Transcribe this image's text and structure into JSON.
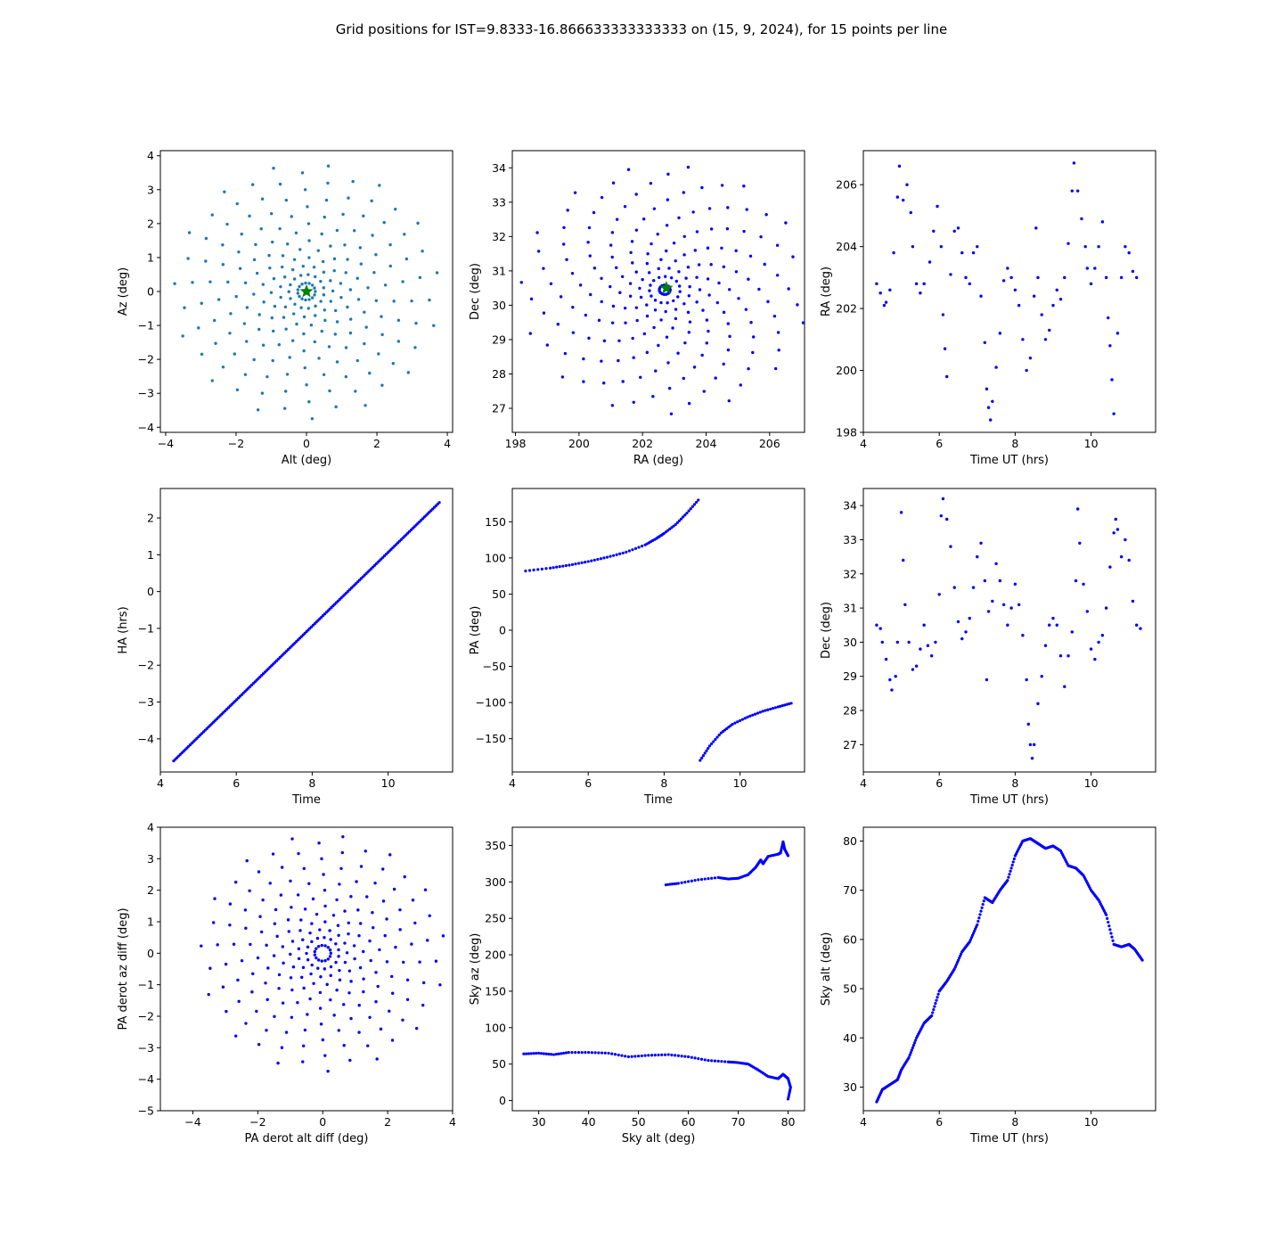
{
  "figure": {
    "title": "Grid positions for IST=9.8333-16.866633333333333 on (15, 9, 2024), for 15 points per line",
    "colors": {
      "points": "#0000ff",
      "grid_points": "#1f77b4",
      "star": "#008000",
      "axes": "#000000"
    }
  },
  "chart_data": [
    {
      "id": "alt-az",
      "type": "scatter",
      "xlabel": "Alt (deg)",
      "ylabel": "Az (deg)",
      "xlim": [
        -4.15,
        4.15
      ],
      "ylim": [
        -4.15,
        4.15
      ],
      "xticks": [
        -4,
        -2,
        0,
        2,
        4
      ],
      "yticks": [
        -4,
        -3,
        -2,
        -1,
        0,
        1,
        2,
        3,
        4
      ],
      "color": "#1f77b4",
      "pattern": "spiral",
      "star": [
        0,
        0
      ],
      "points": []
    },
    {
      "id": "ra-dec",
      "type": "scatter",
      "xlabel": "RA (deg)",
      "ylabel": "Dec (deg)",
      "xlim": [
        197.9,
        207.1
      ],
      "ylim": [
        26.3,
        34.5
      ],
      "xticks": [
        198,
        200,
        202,
        204,
        206
      ],
      "yticks": [
        27,
        28,
        29,
        30,
        31,
        32,
        33,
        34
      ],
      "color": "#0000ff",
      "pattern": "spiral-radec",
      "star": [
        202.75,
        30.5
      ],
      "points": []
    },
    {
      "id": "ra-time",
      "type": "scatter",
      "xlabel": "Time UT (hrs)",
      "ylabel": "RA (deg)",
      "xlim": [
        4.0,
        11.7
      ],
      "ylim": [
        198.0,
        207.1
      ],
      "xticks": [
        4,
        6,
        8,
        10
      ],
      "yticks": [
        198,
        200,
        202,
        204,
        206
      ],
      "color": "#0000ff",
      "points": [
        [
          4.35,
          202.8
        ],
        [
          4.45,
          202.5
        ],
        [
          4.55,
          202.1
        ],
        [
          4.6,
          202.2
        ],
        [
          4.7,
          202.6
        ],
        [
          4.8,
          203.8
        ],
        [
          4.9,
          205.6
        ],
        [
          4.95,
          206.6
        ],
        [
          5.05,
          205.5
        ],
        [
          5.15,
          206.0
        ],
        [
          5.25,
          205.1
        ],
        [
          5.3,
          204.0
        ],
        [
          5.4,
          202.8
        ],
        [
          5.5,
          202.5
        ],
        [
          5.6,
          202.8
        ],
        [
          5.75,
          203.5
        ],
        [
          5.85,
          204.5
        ],
        [
          5.95,
          205.3
        ],
        [
          6.05,
          204.0
        ],
        [
          6.1,
          201.8
        ],
        [
          6.15,
          200.7
        ],
        [
          6.2,
          199.8
        ],
        [
          6.3,
          203.1
        ],
        [
          6.4,
          204.5
        ],
        [
          6.5,
          204.6
        ],
        [
          6.6,
          203.8
        ],
        [
          6.7,
          203.0
        ],
        [
          6.8,
          202.8
        ],
        [
          6.9,
          203.8
        ],
        [
          7.0,
          204.0
        ],
        [
          7.1,
          202.4
        ],
        [
          7.2,
          200.9
        ],
        [
          7.25,
          199.4
        ],
        [
          7.3,
          198.8
        ],
        [
          7.35,
          198.4
        ],
        [
          7.4,
          199.0
        ],
        [
          7.5,
          200.1
        ],
        [
          7.6,
          201.2
        ],
        [
          7.7,
          202.9
        ],
        [
          7.8,
          203.3
        ],
        [
          7.9,
          203.0
        ],
        [
          8.0,
          202.6
        ],
        [
          8.1,
          202.1
        ],
        [
          8.2,
          201.0
        ],
        [
          8.3,
          200.0
        ],
        [
          8.4,
          200.4
        ],
        [
          8.5,
          202.4
        ],
        [
          8.55,
          204.6
        ],
        [
          8.6,
          203.0
        ],
        [
          8.7,
          201.8
        ],
        [
          8.8,
          201.0
        ],
        [
          8.9,
          201.3
        ],
        [
          9.0,
          202.1
        ],
        [
          9.1,
          202.6
        ],
        [
          9.2,
          202.3
        ],
        [
          9.3,
          203.0
        ],
        [
          9.4,
          204.1
        ],
        [
          9.5,
          205.8
        ],
        [
          9.55,
          206.7
        ],
        [
          9.65,
          205.8
        ],
        [
          9.75,
          204.9
        ],
        [
          9.85,
          204.0
        ],
        [
          9.9,
          203.3
        ],
        [
          10.0,
          202.8
        ],
        [
          10.1,
          203.3
        ],
        [
          10.2,
          204.0
        ],
        [
          10.3,
          204.8
        ],
        [
          10.4,
          203.0
        ],
        [
          10.45,
          201.7
        ],
        [
          10.5,
          200.8
        ],
        [
          10.55,
          199.7
        ],
        [
          10.6,
          198.6
        ],
        [
          10.7,
          201.2
        ],
        [
          10.8,
          203.0
        ],
        [
          10.9,
          204.0
        ],
        [
          11.0,
          203.8
        ],
        [
          11.1,
          203.2
        ],
        [
          11.2,
          203.0
        ]
      ]
    },
    {
      "id": "ha-time",
      "type": "line",
      "xlabel": "Time",
      "ylabel": "HA (hrs)",
      "xlim": [
        4.0,
        11.7
      ],
      "ylim": [
        -4.9,
        2.8
      ],
      "xticks": [
        4,
        6,
        8,
        10
      ],
      "yticks": [
        -4,
        -3,
        -2,
        -1,
        0,
        1,
        2
      ],
      "color": "#0000ff",
      "x": [
        4.35,
        11.35
      ],
      "y": [
        -4.6,
        2.42
      ]
    },
    {
      "id": "pa-time",
      "type": "scatter",
      "xlabel": "Time",
      "ylabel": "PA (deg)",
      "xlim": [
        4.0,
        11.7
      ],
      "ylim": [
        -196,
        196
      ],
      "xticks": [
        4,
        6,
        8,
        10
      ],
      "yticks": [
        -150,
        -100,
        -50,
        0,
        50,
        100,
        150
      ],
      "color": "#0000ff",
      "series": [
        {
          "x": [
            4.35,
            5.0,
            5.5,
            6.0,
            6.5,
            7.0,
            7.5,
            7.8,
            8.0,
            8.3,
            8.6,
            8.9
          ],
          "y": [
            82,
            86,
            90,
            95,
            101,
            108,
            118,
            127,
            134,
            146,
            162,
            180
          ]
        },
        {
          "x": [
            8.95,
            9.2,
            9.5,
            9.8,
            10.2,
            10.6,
            11.0,
            11.35
          ],
          "y": [
            -180,
            -160,
            -142,
            -130,
            -120,
            -112,
            -106,
            -101
          ]
        }
      ]
    },
    {
      "id": "dec-time",
      "type": "scatter",
      "xlabel": "Time UT (hrs)",
      "ylabel": "Dec (deg)",
      "xlim": [
        4.0,
        11.7
      ],
      "ylim": [
        26.2,
        34.5
      ],
      "xticks": [
        4,
        6,
        8,
        10
      ],
      "yticks": [
        27,
        28,
        29,
        30,
        31,
        32,
        33,
        34
      ],
      "color": "#0000ff",
      "points": [
        [
          4.35,
          30.5
        ],
        [
          4.45,
          30.4
        ],
        [
          4.5,
          30.0
        ],
        [
          4.6,
          29.5
        ],
        [
          4.7,
          28.9
        ],
        [
          4.75,
          28.6
        ],
        [
          4.85,
          29.0
        ],
        [
          4.9,
          30.0
        ],
        [
          5.0,
          33.8
        ],
        [
          5.05,
          32.4
        ],
        [
          5.1,
          31.1
        ],
        [
          5.2,
          30.0
        ],
        [
          5.3,
          29.2
        ],
        [
          5.4,
          29.3
        ],
        [
          5.5,
          29.8
        ],
        [
          5.6,
          30.5
        ],
        [
          5.7,
          29.9
        ],
        [
          5.8,
          29.6
        ],
        [
          5.9,
          30.0
        ],
        [
          6.0,
          31.4
        ],
        [
          6.05,
          33.7
        ],
        [
          6.1,
          34.2
        ],
        [
          6.2,
          33.6
        ],
        [
          6.3,
          32.8
        ],
        [
          6.4,
          31.6
        ],
        [
          6.5,
          30.6
        ],
        [
          6.6,
          30.1
        ],
        [
          6.7,
          30.3
        ],
        [
          6.8,
          30.7
        ],
        [
          6.9,
          31.6
        ],
        [
          7.0,
          32.5
        ],
        [
          7.1,
          32.9
        ],
        [
          7.2,
          31.8
        ],
        [
          7.25,
          28.9
        ],
        [
          7.3,
          30.9
        ],
        [
          7.4,
          31.2
        ],
        [
          7.5,
          32.3
        ],
        [
          7.6,
          31.8
        ],
        [
          7.7,
          31.1
        ],
        [
          7.8,
          30.5
        ],
        [
          7.9,
          31.0
        ],
        [
          8.0,
          31.7
        ],
        [
          8.1,
          31.1
        ],
        [
          8.2,
          30.2
        ],
        [
          8.3,
          28.9
        ],
        [
          8.35,
          27.6
        ],
        [
          8.4,
          27.0
        ],
        [
          8.45,
          26.6
        ],
        [
          8.5,
          27.0
        ],
        [
          8.6,
          28.2
        ],
        [
          8.7,
          29.0
        ],
        [
          8.8,
          29.9
        ],
        [
          8.9,
          30.5
        ],
        [
          9.0,
          30.7
        ],
        [
          9.1,
          30.5
        ],
        [
          9.2,
          29.6
        ],
        [
          9.3,
          28.7
        ],
        [
          9.4,
          29.6
        ],
        [
          9.5,
          30.3
        ],
        [
          9.6,
          31.8
        ],
        [
          9.65,
          33.9
        ],
        [
          9.7,
          32.9
        ],
        [
          9.8,
          31.7
        ],
        [
          9.9,
          30.9
        ],
        [
          10.0,
          29.8
        ],
        [
          10.1,
          29.5
        ],
        [
          10.2,
          30.0
        ],
        [
          10.3,
          30.2
        ],
        [
          10.4,
          31.0
        ],
        [
          10.5,
          32.2
        ],
        [
          10.6,
          33.2
        ],
        [
          10.65,
          33.6
        ],
        [
          10.7,
          33.3
        ],
        [
          10.8,
          32.5
        ],
        [
          10.9,
          33.0
        ],
        [
          11.0,
          32.4
        ],
        [
          11.1,
          31.2
        ],
        [
          11.2,
          30.5
        ],
        [
          11.3,
          30.4
        ]
      ]
    },
    {
      "id": "pa-derot",
      "type": "scatter",
      "xlabel": "PA derot alt diff (deg)",
      "ylabel": "PA derot az diff (deg)",
      "xlim": [
        -5,
        4
      ],
      "ylim": [
        -5,
        4
      ],
      "xticks": [
        -4,
        -2,
        0,
        2,
        4
      ],
      "yticks": [
        -5,
        -4,
        -3,
        -2,
        -1,
        0,
        1,
        2,
        3,
        4
      ],
      "color": "#0000ff",
      "pattern": "spiral",
      "points": []
    },
    {
      "id": "sky-az-alt",
      "type": "scatter",
      "xlabel": "Sky alt (deg)",
      "ylabel": "Sky az (deg)",
      "xlim": [
        24.7,
        83.3
      ],
      "ylim": [
        -14,
        375
      ],
      "xticks": [
        30,
        40,
        50,
        60,
        70,
        80
      ],
      "yticks": [
        0,
        50,
        100,
        150,
        200,
        250,
        300,
        350
      ],
      "color": "#0000ff",
      "series": [
        {
          "x": [
            27,
            30,
            33,
            36,
            40,
            44,
            48,
            52,
            56,
            60,
            64,
            68,
            70,
            72,
            74,
            76,
            78,
            79,
            80,
            80.5,
            80
          ],
          "y": [
            64,
            65,
            63,
            66,
            66,
            65,
            60,
            62,
            63,
            60,
            55,
            53,
            52,
            50,
            42,
            33,
            30,
            36,
            30,
            18,
            2
          ]
        },
        {
          "x": [
            55.5,
            58,
            62,
            66,
            68,
            70,
            72,
            73.5,
            74.5,
            75,
            76,
            78,
            78.5,
            79,
            79.3,
            80
          ],
          "y": [
            296,
            298,
            303,
            306,
            304,
            305,
            310,
            320,
            330,
            325,
            335,
            338,
            340,
            355,
            345,
            336
          ]
        }
      ]
    },
    {
      "id": "sky-alt-time",
      "type": "line",
      "xlabel": "Time UT (hrs)",
      "ylabel": "Sky alt (deg)",
      "xlim": [
        4.0,
        11.7
      ],
      "ylim": [
        25.2,
        82.8
      ],
      "xticks": [
        4,
        6,
        8,
        10
      ],
      "yticks": [
        30,
        40,
        50,
        60,
        70,
        80
      ],
      "color": "#0000ff",
      "x": [
        4.35,
        4.5,
        4.7,
        4.9,
        5.0,
        5.2,
        5.4,
        5.6,
        5.8,
        6.0,
        6.2,
        6.4,
        6.6,
        6.8,
        7.0,
        7.2,
        7.4,
        7.6,
        7.8,
        8.0,
        8.2,
        8.4,
        8.6,
        8.8,
        9.0,
        9.2,
        9.4,
        9.6,
        9.8,
        10.0,
        10.2,
        10.4,
        10.6,
        10.8,
        11.0,
        11.15,
        11.35
      ],
      "y": [
        27,
        29.5,
        30.5,
        31.5,
        33.5,
        36,
        40,
        43,
        44.5,
        49.5,
        51.5,
        54,
        57.5,
        59.5,
        63,
        68.5,
        67.5,
        70,
        72,
        77,
        80,
        80.5,
        79.5,
        78.5,
        79,
        78,
        75,
        74.5,
        73,
        70,
        68,
        65,
        59,
        58.5,
        59,
        58,
        55.8
      ]
    }
  ]
}
